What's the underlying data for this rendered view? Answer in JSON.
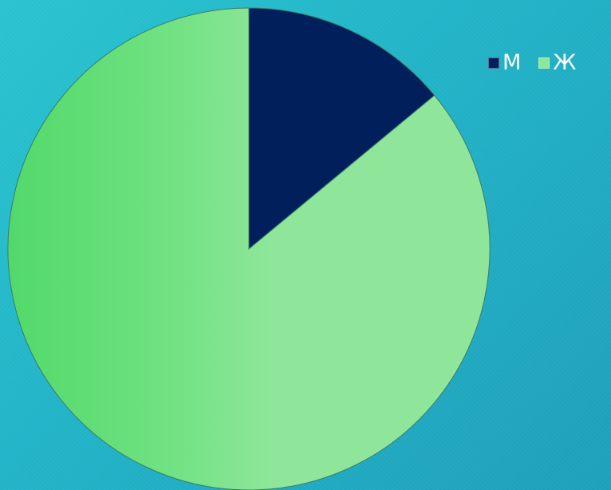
{
  "chart_data": {
    "type": "pie",
    "categories": [
      "М",
      "Ж"
    ],
    "values": [
      14,
      86
    ],
    "colors": [
      "#001f5b",
      "#8fe69a"
    ],
    "legend_position": "top-right",
    "title": ""
  },
  "colors": {
    "background": "#22b3c7",
    "slice_m": "#001f5b",
    "slice_f": "#8fe69a",
    "slice_f_shade": "#5cdc72",
    "legend_text": "#ffffff"
  }
}
